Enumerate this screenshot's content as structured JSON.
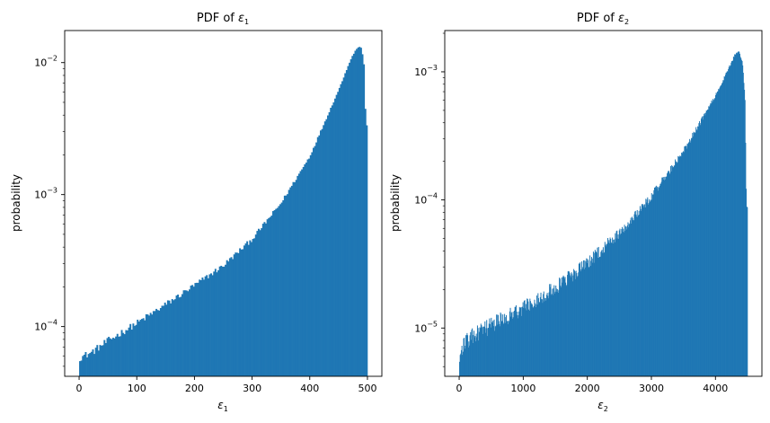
{
  "colors": {
    "bar": "#1f77b4",
    "axis": "#000000",
    "background": "#ffffff"
  },
  "chart_data": [
    {
      "type": "bar",
      "title_prefix": "PDF of ",
      "title_symbol": "ε",
      "title_subscript": "1",
      "xlabel_symbol": "ε",
      "xlabel_subscript": "1",
      "ylabel": "probability",
      "yscale": "log",
      "xlim": [
        -25,
        525
      ],
      "ylim": [
        4.2e-05,
        0.0175
      ],
      "xticks": [
        0,
        100,
        200,
        300,
        400,
        500
      ],
      "xtick_labels": [
        "0",
        "100",
        "200",
        "300",
        "400",
        "500"
      ],
      "yticks": [
        0.0001,
        0.001,
        0.01
      ],
      "ytick_bases": [
        "10",
        "10",
        "10"
      ],
      "ytick_exponents": [
        "−4",
        "−3",
        "−2"
      ],
      "grid": false,
      "bins": {
        "x_start": 0,
        "bin_width": 2.5,
        "count": 200
      },
      "profile": {
        "x": [
          0,
          20,
          50,
          100,
          150,
          200,
          250,
          300,
          350,
          400,
          450,
          470,
          480,
          485,
          490,
          494,
          497,
          500
        ],
        "y": [
          5.8e-05,
          6.3e-05,
          7.8e-05,
          0.000106,
          0.000147,
          0.000205,
          0.00029,
          0.00046,
          0.00086,
          0.00195,
          0.0062,
          0.0104,
          0.0126,
          0.0132,
          0.0128,
          0.0095,
          0.0034,
          0.0034
        ]
      },
      "noise": 0.07
    },
    {
      "type": "bar",
      "title_prefix": "PDF of ",
      "title_symbol": "ε",
      "title_subscript": "2",
      "xlabel_symbol": "ε",
      "xlabel_subscript": "2",
      "ylabel": "probability",
      "yscale": "log",
      "xlim": [
        -225,
        4725
      ],
      "ylim": [
        4.2e-06,
        0.0021
      ],
      "xticks": [
        0,
        1000,
        2000,
        3000,
        4000
      ],
      "xtick_labels": [
        "0",
        "1000",
        "2000",
        "3000",
        "4000"
      ],
      "yticks": [
        1e-05,
        0.0001,
        0.001
      ],
      "ytick_bases": [
        "10",
        "10",
        "10"
      ],
      "ytick_exponents": [
        "−5",
        "−4",
        "−3"
      ],
      "grid": false,
      "bins": {
        "x_start": 0,
        "bin_width": 9,
        "count": 500
      },
      "profile": {
        "x": [
          0,
          60,
          200,
          500,
          1000,
          1500,
          2000,
          2500,
          3000,
          3500,
          4000,
          4200,
          4300,
          4360,
          4420,
          4460,
          4480,
          4500
        ],
        "y": [
          5.5e-06,
          7.5e-06,
          8.5e-06,
          1.05e-05,
          1.45e-05,
          2.05e-05,
          3.2e-05,
          5.5e-05,
          0.000107,
          0.00024,
          0.00065,
          0.00105,
          0.00135,
          0.00145,
          0.0012,
          0.0006,
          9e-05,
          9e-05
        ]
      },
      "noise": 0.18
    }
  ]
}
